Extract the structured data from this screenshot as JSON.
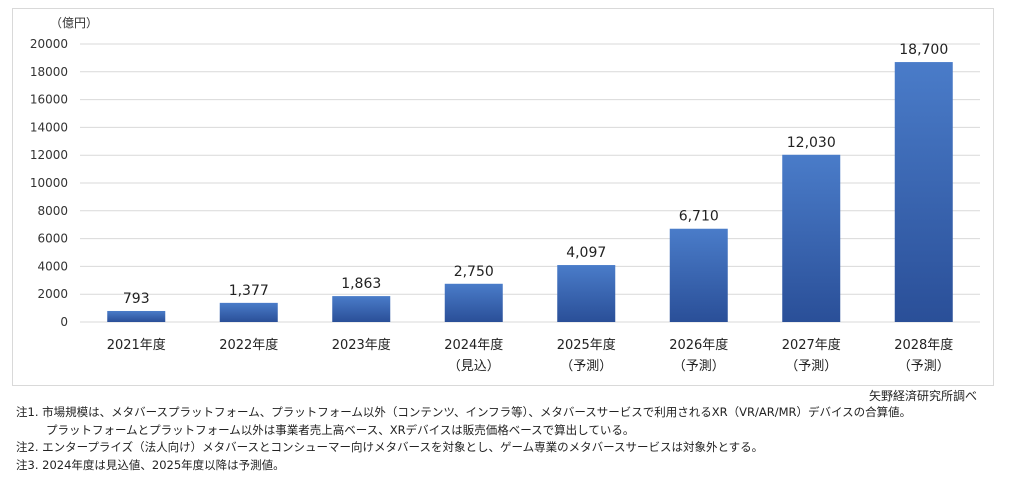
{
  "chart_data": {
    "type": "bar",
    "unit_label": "（億円）",
    "categories": [
      "2021年度",
      "2022年度",
      "2023年度",
      "2024年度",
      "2025年度",
      "2026年度",
      "2027年度",
      "2028年度"
    ],
    "sublabels": [
      "",
      "",
      "",
      "（見込）",
      "（予測）",
      "（予測）",
      "（予測）",
      "（予測）"
    ],
    "values": [
      793,
      1377,
      1863,
      2750,
      4097,
      6710,
      12030,
      18700
    ],
    "value_labels": [
      "793",
      "1,377",
      "1,863",
      "2,750",
      "4,097",
      "6,710",
      "12,030",
      "18,700"
    ],
    "ylim": [
      0,
      20000
    ],
    "yticks": [
      "0",
      "2000",
      "4000",
      "6000",
      "8000",
      "10000",
      "12000",
      "14000",
      "16000",
      "18000",
      "20000"
    ],
    "grid": true,
    "colors": {
      "bar_top": "#4a7cc9",
      "bar_bottom": "#2a4f98",
      "grid": "#d9d9d9"
    }
  },
  "source": "矢野経済研究所調べ",
  "notes": [
    "注1. 市場規模は、メタバースプラットフォーム、プラットフォーム以外（コンテンツ、インフラ等）、メタバースサービスで利用されるXR（VR/AR/MR）デバイスの合算値。",
    "プラットフォームとプラットフォーム以外は事業者売上高ベース、XRデバイスは販売価格ベースで算出している。",
    "注2. エンタープライズ（法人向け）メタバースとコンシューマー向けメタバースを対象とし、ゲーム専業のメタバースサービスは対象外とする。",
    "注3. 2024年度は見込値、2025年度以降は予測値。"
  ]
}
